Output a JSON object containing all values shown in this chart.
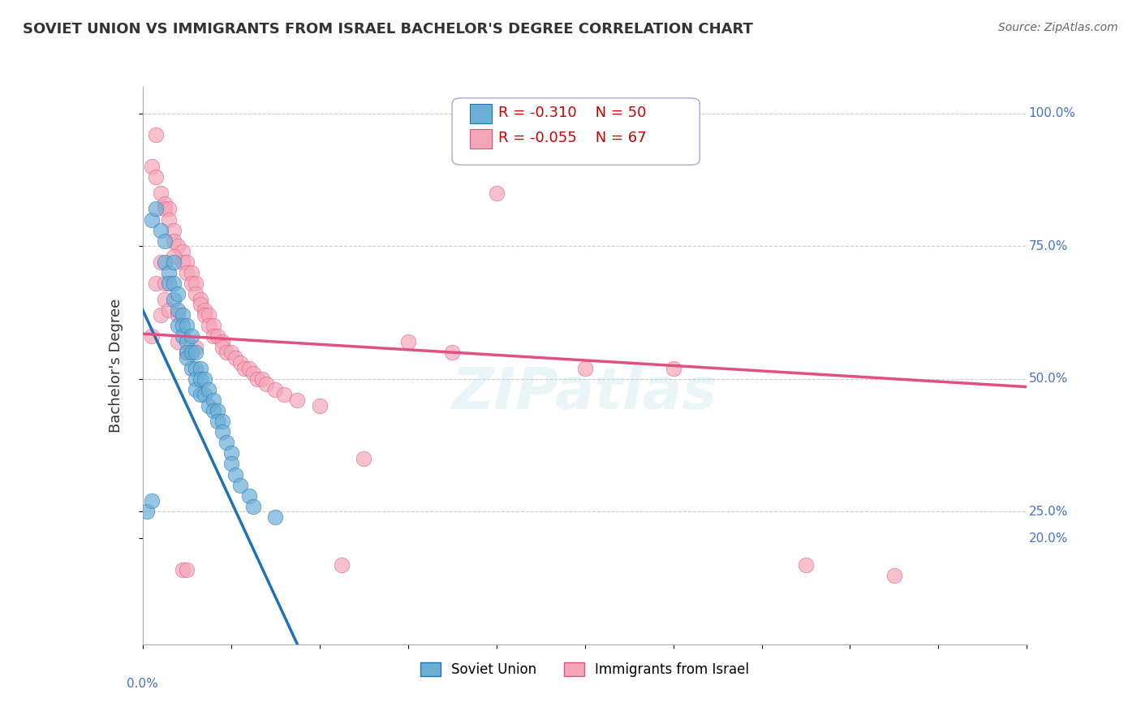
{
  "title": "SOVIET UNION VS IMMIGRANTS FROM ISRAEL BACHELOR'S DEGREE CORRELATION CHART",
  "source": "Source: ZipAtlas.com",
  "ylabel": "Bachelor's Degree",
  "xlim": [
    0.0,
    0.2
  ],
  "ylim": [
    0.0,
    1.05
  ],
  "legend_r1": "R = -0.310",
  "legend_n1": "N = 50",
  "legend_r2": "R = -0.055",
  "legend_n2": "N = 67",
  "color_blue": "#6baed6",
  "color_pink": "#f4a6b8",
  "color_line_blue": "#2171b5",
  "color_line_pink": "#e05080",
  "color_line_dashed": "#aaaaaa",
  "watermark": "ZIPatlas",
  "blue_slope": -18.0,
  "blue_intercept": 0.63,
  "pink_slope": -0.5,
  "pink_intercept": 0.585,
  "blue_x": [
    0.002,
    0.003,
    0.004,
    0.005,
    0.005,
    0.006,
    0.006,
    0.007,
    0.007,
    0.007,
    0.008,
    0.008,
    0.008,
    0.009,
    0.009,
    0.009,
    0.01,
    0.01,
    0.01,
    0.01,
    0.011,
    0.011,
    0.011,
    0.012,
    0.012,
    0.012,
    0.012,
    0.013,
    0.013,
    0.013,
    0.014,
    0.014,
    0.015,
    0.015,
    0.016,
    0.016,
    0.017,
    0.017,
    0.018,
    0.018,
    0.019,
    0.02,
    0.02,
    0.021,
    0.022,
    0.024,
    0.025,
    0.03,
    0.001,
    0.002
  ],
  "blue_y": [
    0.8,
    0.82,
    0.78,
    0.76,
    0.72,
    0.7,
    0.68,
    0.72,
    0.68,
    0.65,
    0.66,
    0.63,
    0.6,
    0.62,
    0.6,
    0.58,
    0.6,
    0.57,
    0.55,
    0.54,
    0.58,
    0.55,
    0.52,
    0.55,
    0.52,
    0.5,
    0.48,
    0.52,
    0.5,
    0.47,
    0.5,
    0.47,
    0.48,
    0.45,
    0.46,
    0.44,
    0.44,
    0.42,
    0.42,
    0.4,
    0.38,
    0.36,
    0.34,
    0.32,
    0.3,
    0.28,
    0.26,
    0.24,
    0.25,
    0.27
  ],
  "pink_x": [
    0.002,
    0.003,
    0.004,
    0.005,
    0.005,
    0.006,
    0.006,
    0.007,
    0.007,
    0.008,
    0.009,
    0.009,
    0.01,
    0.01,
    0.011,
    0.011,
    0.012,
    0.012,
    0.013,
    0.013,
    0.014,
    0.014,
    0.015,
    0.015,
    0.016,
    0.016,
    0.017,
    0.018,
    0.018,
    0.019,
    0.02,
    0.021,
    0.022,
    0.023,
    0.024,
    0.025,
    0.026,
    0.027,
    0.028,
    0.03,
    0.032,
    0.035,
    0.04,
    0.045,
    0.05,
    0.06,
    0.07,
    0.08,
    0.1,
    0.12,
    0.003,
    0.004,
    0.005,
    0.006,
    0.007,
    0.008,
    0.009,
    0.01,
    0.002,
    0.003,
    0.004,
    0.005,
    0.15,
    0.17,
    0.008,
    0.01,
    0.012
  ],
  "pink_y": [
    0.9,
    0.88,
    0.85,
    0.83,
    0.82,
    0.82,
    0.8,
    0.78,
    0.76,
    0.75,
    0.74,
    0.72,
    0.72,
    0.7,
    0.7,
    0.68,
    0.68,
    0.66,
    0.65,
    0.64,
    0.63,
    0.62,
    0.62,
    0.6,
    0.6,
    0.58,
    0.58,
    0.57,
    0.56,
    0.55,
    0.55,
    0.54,
    0.53,
    0.52,
    0.52,
    0.51,
    0.5,
    0.5,
    0.49,
    0.48,
    0.47,
    0.46,
    0.45,
    0.15,
    0.35,
    0.57,
    0.55,
    0.85,
    0.52,
    0.52,
    0.96,
    0.62,
    0.65,
    0.63,
    0.73,
    0.57,
    0.14,
    0.14,
    0.58,
    0.68,
    0.72,
    0.68,
    0.15,
    0.13,
    0.62,
    0.55,
    0.56
  ]
}
